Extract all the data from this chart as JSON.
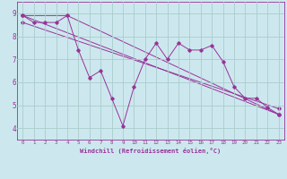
{
  "xlabel": "Windchill (Refroidissement éolien,°C)",
  "bg_color": "#cce8ee",
  "grid_color": "#aacccc",
  "line_color": "#993399",
  "xlim": [
    -0.5,
    23.5
  ],
  "ylim": [
    3.5,
    9.5
  ],
  "xticks": [
    0,
    1,
    2,
    3,
    4,
    5,
    6,
    7,
    8,
    9,
    10,
    11,
    12,
    13,
    14,
    15,
    16,
    17,
    18,
    19,
    20,
    21,
    22,
    23
  ],
  "yticks": [
    4,
    5,
    6,
    7,
    8,
    9
  ],
  "series1_x": [
    0,
    1,
    2,
    3,
    4,
    5,
    6,
    7,
    8,
    9,
    10,
    11,
    12,
    13,
    14,
    15,
    16,
    17,
    18,
    19,
    20,
    21,
    22,
    23
  ],
  "series1_y": [
    8.9,
    8.6,
    8.6,
    8.6,
    8.9,
    7.4,
    6.2,
    6.5,
    5.3,
    4.1,
    5.8,
    7.0,
    7.7,
    7.0,
    7.7,
    7.4,
    7.4,
    7.6,
    6.9,
    5.8,
    5.3,
    5.3,
    4.9,
    4.6
  ],
  "trend1_x": [
    0,
    23
  ],
  "trend1_y": [
    8.9,
    4.6
  ],
  "trend2_x": [
    0,
    4,
    23
  ],
  "trend2_y": [
    8.9,
    8.9,
    4.6
  ],
  "trend3_x": [
    0,
    23
  ],
  "trend3_y": [
    8.6,
    4.85
  ]
}
